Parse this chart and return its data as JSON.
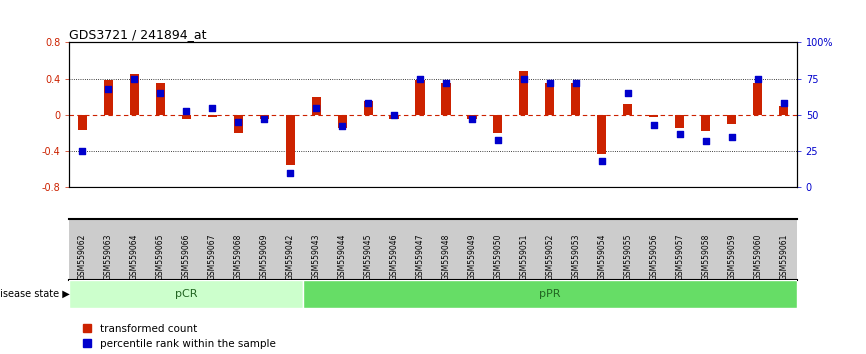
{
  "title": "GDS3721 / 241894_at",
  "samples": [
    "GSM559062",
    "GSM559063",
    "GSM559064",
    "GSM559065",
    "GSM559066",
    "GSM559067",
    "GSM559068",
    "GSM559069",
    "GSM559042",
    "GSM559043",
    "GSM559044",
    "GSM559045",
    "GSM559046",
    "GSM559047",
    "GSM559048",
    "GSM559049",
    "GSM559050",
    "GSM559051",
    "GSM559052",
    "GSM559053",
    "GSM559054",
    "GSM559055",
    "GSM559056",
    "GSM559057",
    "GSM559058",
    "GSM559059",
    "GSM559060",
    "GSM559061"
  ],
  "transformed_count": [
    -0.17,
    0.39,
    0.45,
    0.35,
    -0.05,
    -0.02,
    -0.2,
    -0.04,
    -0.55,
    0.2,
    -0.15,
    0.15,
    -0.05,
    0.38,
    0.35,
    -0.05,
    -0.2,
    0.48,
    0.35,
    0.35,
    -0.43,
    0.12,
    -0.02,
    -0.14,
    -0.18,
    -0.1,
    0.35,
    0.1
  ],
  "percentile_rank": [
    25,
    68,
    75,
    65,
    53,
    55,
    45,
    47,
    10,
    55,
    42,
    58,
    50,
    75,
    72,
    47,
    33,
    75,
    72,
    72,
    18,
    65,
    43,
    37,
    32,
    35,
    75,
    58
  ],
  "pcr_count": 9,
  "ppr_count": 19,
  "pCR_color": "#ccffcc",
  "pPR_color": "#66dd66",
  "bar_color": "#cc2200",
  "dot_color": "#0000cc",
  "label_bg_color": "#cccccc",
  "ylim": [
    -0.8,
    0.8
  ],
  "yticks_left": [
    -0.8,
    -0.4,
    0.0,
    0.4,
    0.8
  ],
  "yticks_right": [
    0,
    25,
    50,
    75,
    100
  ],
  "dotted_lines": [
    -0.4,
    0.4
  ],
  "zero_line": 0.0,
  "background_color": "#ffffff"
}
